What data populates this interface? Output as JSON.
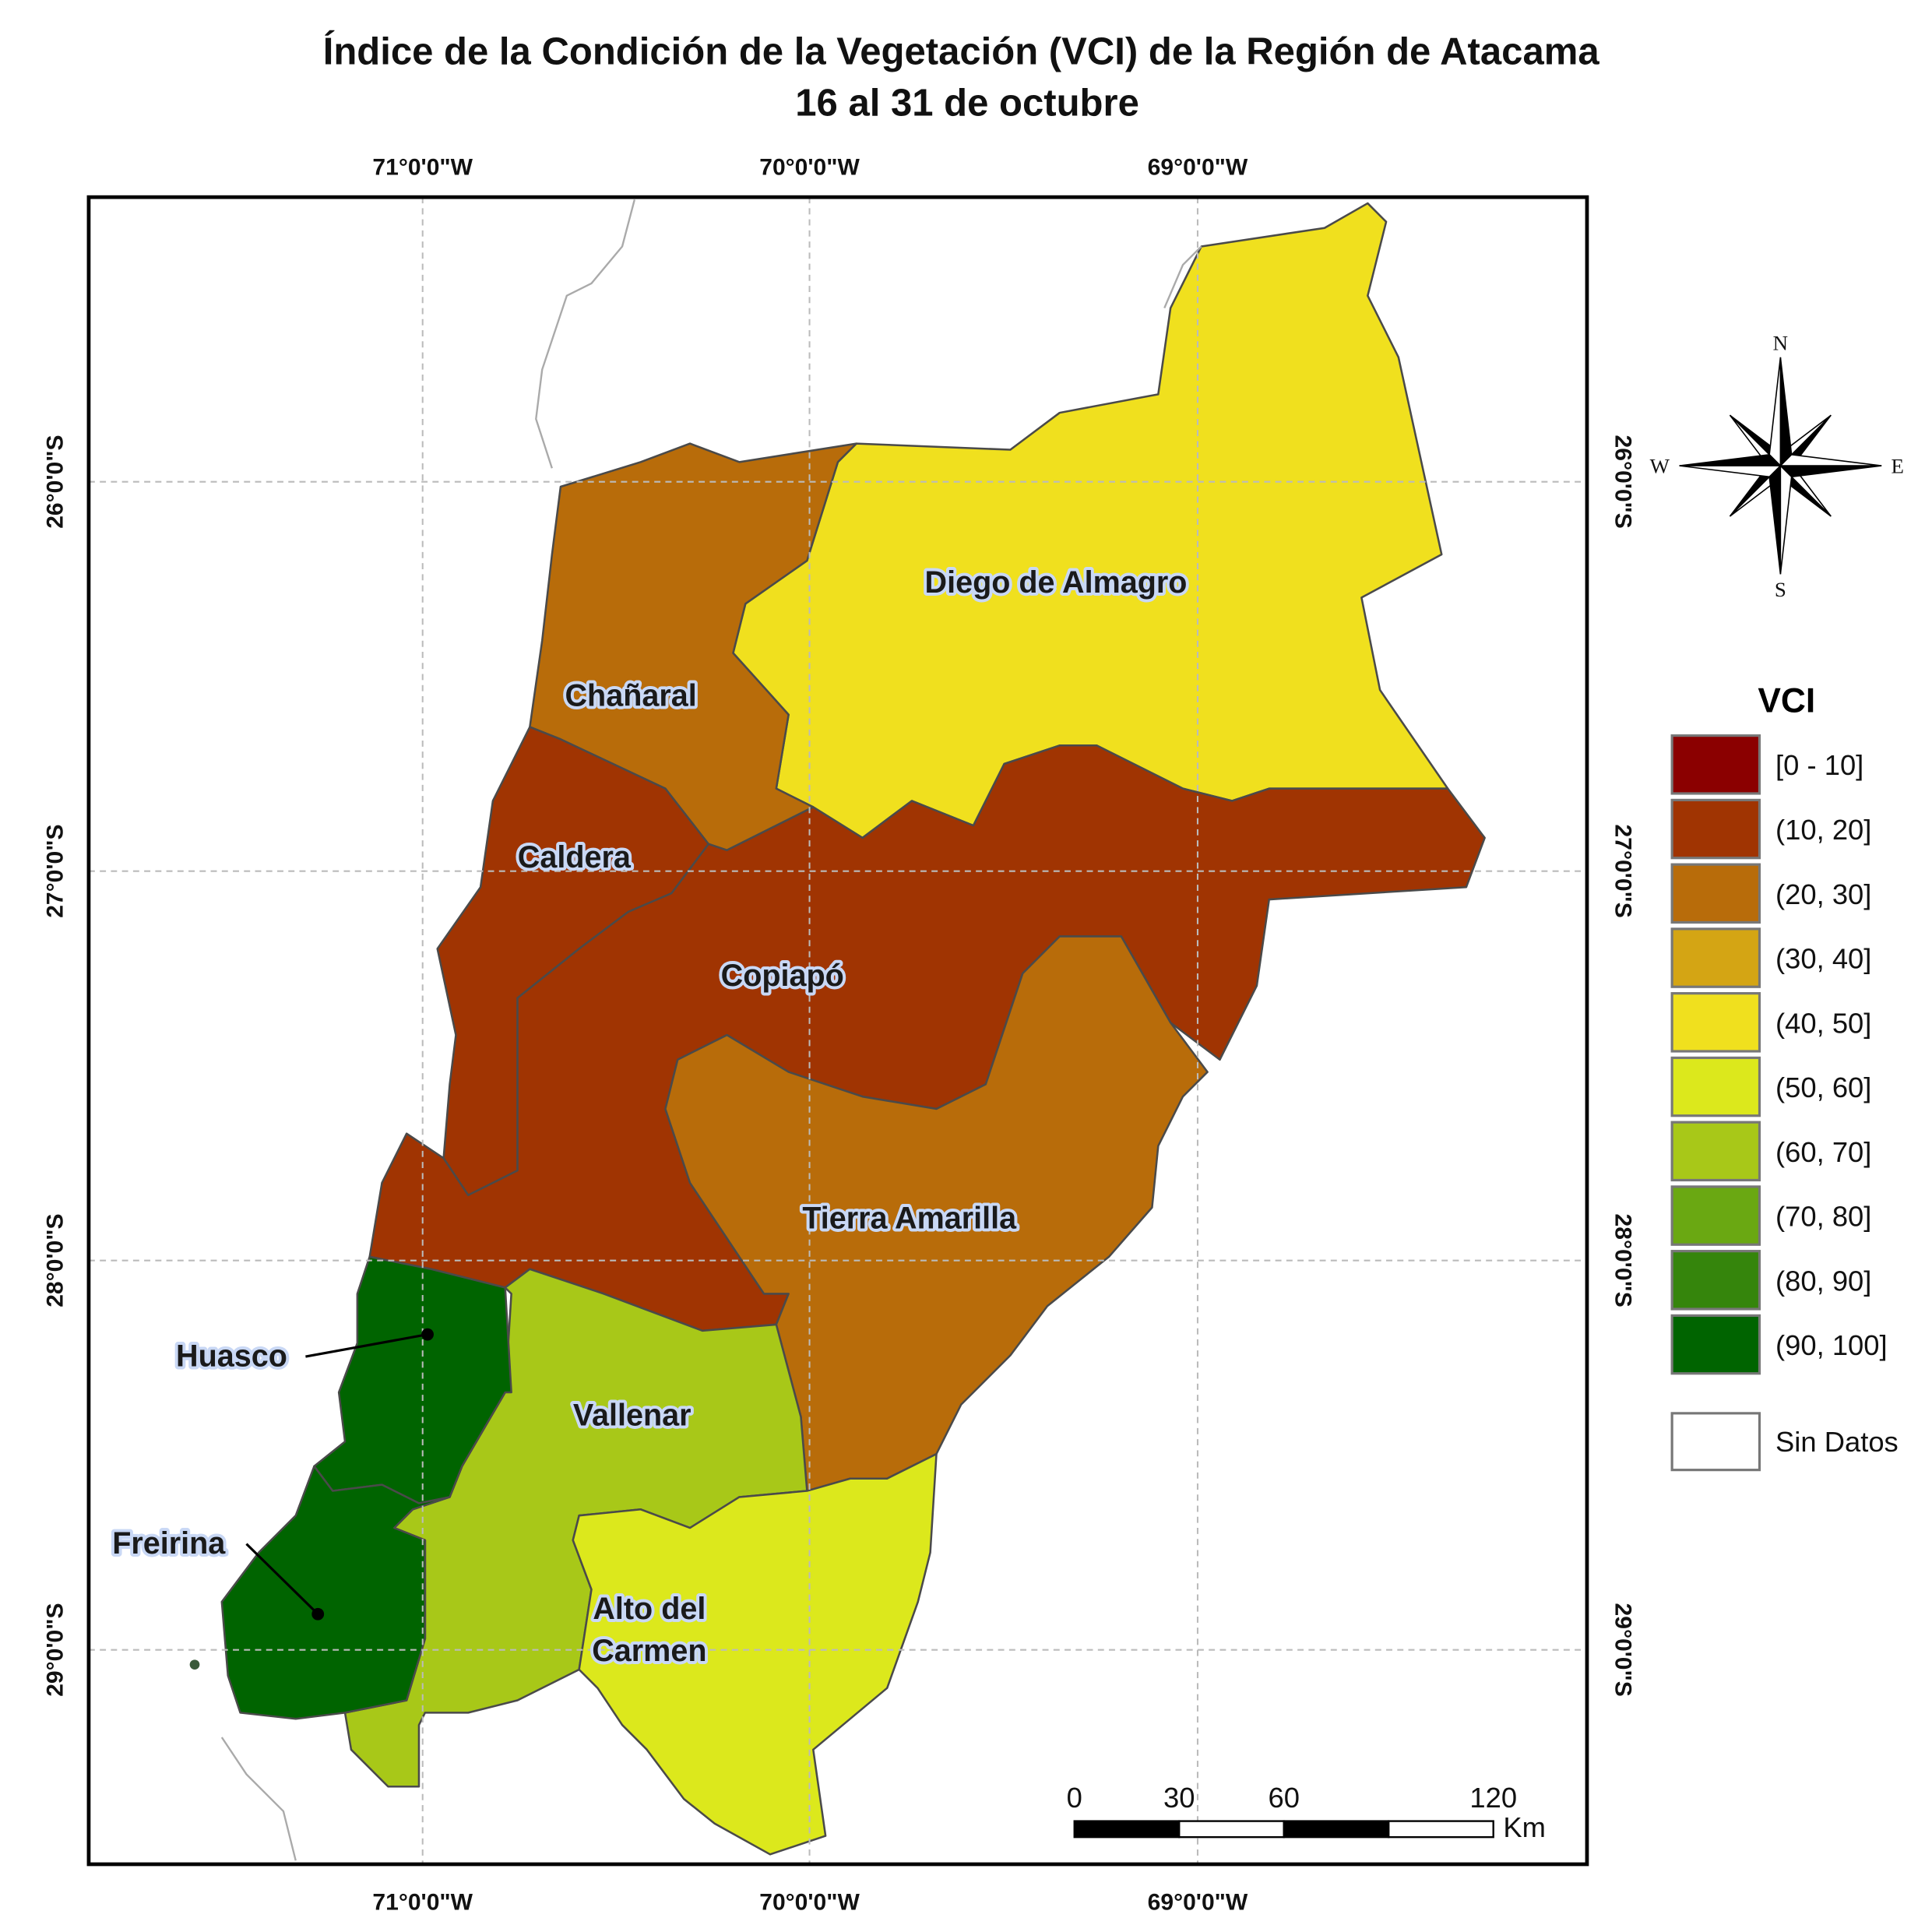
{
  "title": [
    "Índice de la Condición de la Vegetación (VCI) de la Región de Atacama",
    "16 al 31 de octubre"
  ],
  "longitude_labels": [
    "71°0'0\"W",
    "70°0'0\"W",
    "69°0'0\"W"
  ],
  "latitude_labels": [
    "26°0'0\"S",
    "27°0'0\"S",
    "28°0'0\"S",
    "29°0'0\"S"
  ],
  "communes": [
    {
      "name": "Diego de Almagro",
      "color": "#f0e01e"
    },
    {
      "name": "Chañaral",
      "color": "#b86c0a"
    },
    {
      "name": "Caldera",
      "color": "#a03402"
    },
    {
      "name": "Copiapó",
      "color": "#a03402"
    },
    {
      "name": "Tierra Amarilla",
      "color": "#b86c0a"
    },
    {
      "name": "Vallenar",
      "color": "#a8c818"
    },
    {
      "name": "Alto del Carmen",
      "color": "#dce81c"
    },
    {
      "name": "Huasco",
      "color": "#006400"
    },
    {
      "name": "Freirina",
      "color": "#006400"
    }
  ],
  "legend": {
    "title": "VCI",
    "items": [
      {
        "label": "[0 - 10]",
        "color": "#8b0000"
      },
      {
        "label": "(10, 20]",
        "color": "#a03402"
      },
      {
        "label": "(20, 30]",
        "color": "#b86c0a"
      },
      {
        "label": "(30, 40]",
        "color": "#d4a514"
      },
      {
        "label": "(40, 50]",
        "color": "#f0e01e"
      },
      {
        "label": "(50, 60]",
        "color": "#dce81c"
      },
      {
        "label": "(60, 70]",
        "color": "#a8c818"
      },
      {
        "label": "(70, 80]",
        "color": "#6aa812"
      },
      {
        "label": "(80, 90]",
        "color": "#35850c"
      },
      {
        "label": "(90, 100]",
        "color": "#006400"
      }
    ],
    "no_data": {
      "label": "Sin Datos",
      "color": "#ffffff"
    }
  },
  "scale_bar": {
    "ticks": [
      0,
      30,
      60,
      120
    ],
    "unit": "Km"
  },
  "compass": {
    "north": "N",
    "east": "E",
    "south": "S",
    "west": "W"
  }
}
